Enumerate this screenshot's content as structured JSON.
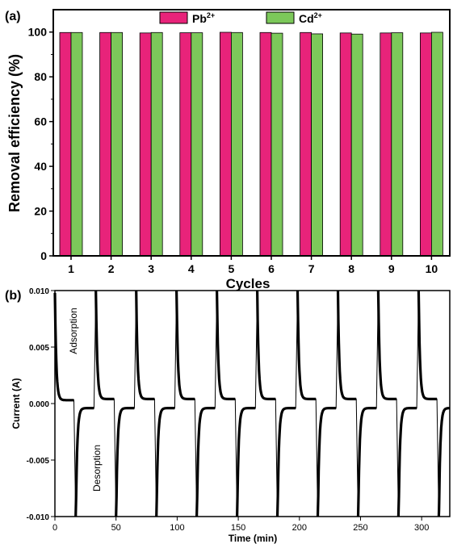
{
  "panels": {
    "a": {
      "label": "(a)"
    },
    "b": {
      "label": "(b)"
    }
  },
  "chart_data": [
    {
      "type": "bar",
      "panel": "(a)",
      "title": "",
      "xlabel": "Cycles",
      "ylabel": "Removal efficiency (%)",
      "categories": [
        "1",
        "2",
        "3",
        "4",
        "5",
        "6",
        "7",
        "8",
        "9",
        "10"
      ],
      "ylim": [
        0,
        110
      ],
      "yticks": [
        0,
        20,
        40,
        60,
        80,
        100
      ],
      "grid": false,
      "legend_position": "top-center",
      "series": [
        {
          "name": "Pb",
          "superscript": "2+",
          "color": "#e8237a",
          "values": [
            99.8,
            99.8,
            99.6,
            99.7,
            99.9,
            99.8,
            99.8,
            99.6,
            99.6,
            99.6
          ]
        },
        {
          "name": "Cd",
          "superscript": "2+",
          "color": "#7cc85a",
          "values": [
            99.8,
            99.8,
            99.8,
            99.7,
            99.8,
            99.5,
            99.2,
            99.1,
            99.7,
            99.9
          ]
        }
      ]
    },
    {
      "type": "line",
      "panel": "(b)",
      "title": "",
      "xlabel": "Time (min)",
      "ylabel": "Current (A)",
      "xlim": [
        0,
        323
      ],
      "ylim": [
        -0.01,
        0.01
      ],
      "xticks": [
        "0",
        "50",
        "100",
        "150",
        "200",
        "250",
        "300"
      ],
      "yticks": [
        "-0.010",
        "-0.005",
        "0.000",
        "0.005",
        "0.010"
      ],
      "grid": false,
      "cycle_period_min": 33,
      "first_desorption_min": 17,
      "cycle_count": 10,
      "annotations": [
        "Adsorption",
        "Desorption"
      ],
      "series": [
        {
          "name": "",
          "color": "#000000"
        }
      ]
    }
  ]
}
